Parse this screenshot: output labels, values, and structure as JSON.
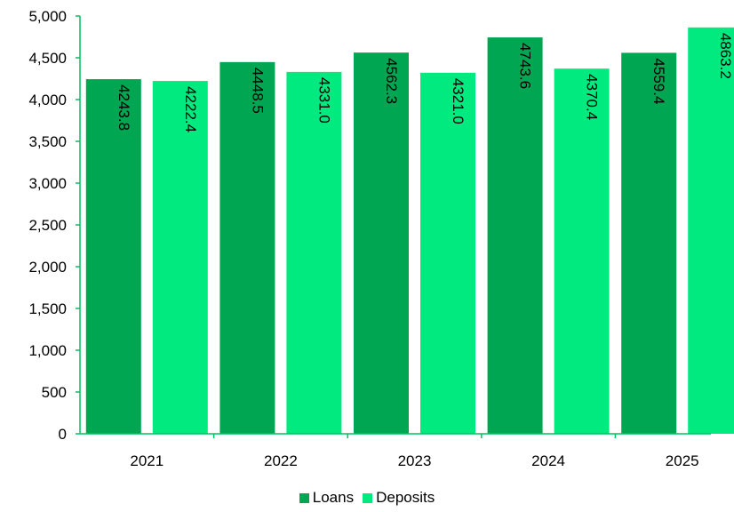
{
  "chart_data": {
    "type": "bar",
    "categories": [
      "2021",
      "2022",
      "2023",
      "2024",
      "2025"
    ],
    "series": [
      {
        "name": "Loans",
        "values": [
          4243.8,
          4448.5,
          4562.3,
          4743.6,
          4559.4
        ],
        "color": "#00a651"
      },
      {
        "name": "Deposits",
        "values": [
          4222.4,
          4331.0,
          4321.0,
          4370.4,
          4863.2
        ],
        "color": "#00ea7f"
      }
    ],
    "data_labels": [
      [
        "4243.8",
        "4448.5",
        "4562.3",
        "4743.6",
        "4559.4"
      ],
      [
        "4222.4",
        "4331.0",
        "4321.0",
        "4370.4",
        "4863.2"
      ]
    ],
    "title": "",
    "xlabel": "",
    "ylabel": "",
    "ylim": [
      0,
      5000
    ],
    "yticks": [
      0,
      500,
      1000,
      1500,
      2000,
      2500,
      3000,
      3500,
      4000,
      4500,
      5000
    ],
    "ytick_labels": [
      "0",
      "500",
      "1,000",
      "1,500",
      "2,000",
      "2,500",
      "3,000",
      "3,500",
      "4,000",
      "4,500",
      "5,000"
    ],
    "axis_color": "#00c060",
    "grid": false,
    "legend_position": "bottom"
  }
}
